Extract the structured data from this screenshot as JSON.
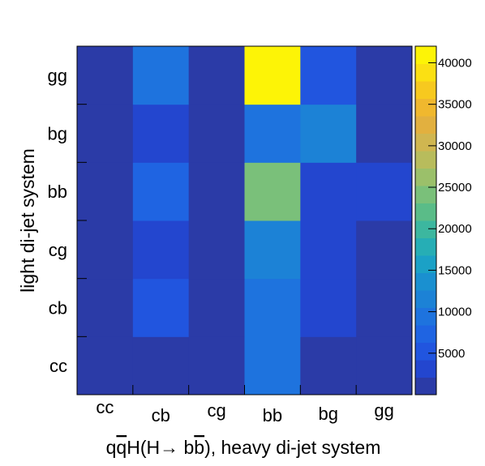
{
  "chart_data": {
    "type": "heatmap",
    "title": "",
    "xlabel_parts": [
      "q",
      "q",
      "H(H",
      "→",
      " b",
      "b",
      "), heavy di-jet system"
    ],
    "ylabel": "light di-jet system",
    "x_categories": [
      "cc",
      "cb",
      "cg",
      "bb",
      "bg",
      "gg"
    ],
    "y_categories": [
      "cc",
      "cb",
      "cg",
      "bb",
      "bg",
      "gg"
    ],
    "values": [
      [
        1000,
        1200,
        1000,
        8500,
        1000,
        1000
      ],
      [
        1000,
        4500,
        1000,
        9500,
        4000,
        1000
      ],
      [
        1000,
        4000,
        1000,
        11000,
        4000,
        1000
      ],
      [
        1000,
        7000,
        1000,
        25000,
        4000,
        4000
      ],
      [
        1000,
        4000,
        1000,
        8500,
        12500,
        1000
      ],
      [
        1000,
        10000,
        1000,
        42000,
        6000,
        1000
      ]
    ],
    "zlim": [
      0,
      42000
    ],
    "colorbar_ticks": [
      5000,
      10000,
      15000,
      20000,
      25000,
      30000,
      35000,
      40000
    ],
    "palette": [
      "#2b3ba7",
      "#2346cf",
      "#2155df",
      "#1f64e2",
      "#1e73de",
      "#1c82d6",
      "#1a90d0",
      "#1ba1c6",
      "#26aeb5",
      "#3cb79f",
      "#5abc88",
      "#7ac07a",
      "#9bc06a",
      "#b8bc5c",
      "#d0b650",
      "#e2b03f",
      "#f0b82e",
      "#f7c91f",
      "#fbe013",
      "#fdf406"
    ],
    "colors": {
      "page_bg": "#ffffff",
      "axis": "#000000"
    }
  }
}
